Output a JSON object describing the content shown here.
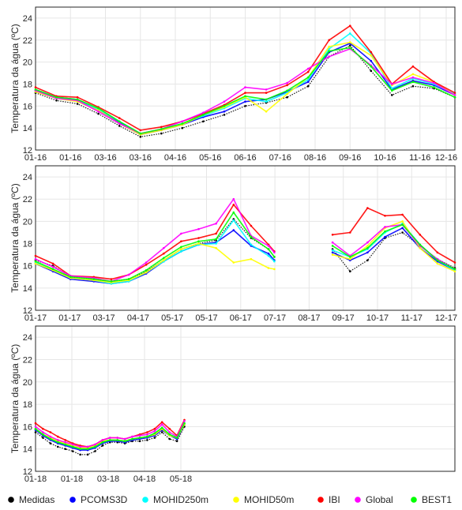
{
  "legend": {
    "items": [
      {
        "name": "Medidas",
        "color": "#000000"
      },
      {
        "name": "PCOMS3D",
        "color": "#0000ff"
      },
      {
        "name": "MOHID250m",
        "color": "#00ffff"
      },
      {
        "name": "MOHID50m",
        "color": "#ffff00"
      },
      {
        "name": "IBI",
        "color": "#ff0000"
      },
      {
        "name": "Global",
        "color": "#ff00ff"
      },
      {
        "name": "BEST1",
        "color": "#00ff00"
      }
    ]
  },
  "chart_data": [
    {
      "type": "line",
      "ylabel": "Temperatura da água (ºC)",
      "ylim": [
        12,
        25
      ],
      "yticks": [
        "12",
        "14",
        "16",
        "18",
        "20",
        "22",
        "24"
      ],
      "xticks": [
        "01-16",
        "01-16",
        "03-16",
        "03-16",
        "04-16",
        "05-16",
        "06-16",
        "07-16",
        "08-16",
        "09-16",
        "10-16",
        "11-16",
        "12-16"
      ],
      "grid": true,
      "series": [
        {
          "name": "Medidas",
          "x": [
            0,
            3,
            6,
            9,
            12,
            15,
            18,
            21,
            24,
            27,
            30,
            33,
            36,
            39,
            42,
            45,
            48,
            51,
            54,
            57,
            60
          ],
          "y": [
            17.2,
            16.5,
            16.2,
            15.3,
            14.2,
            13.2,
            13.5,
            14.0,
            14.6,
            15.2,
            16.0,
            16.3,
            16.8,
            17.8,
            20.5,
            21.5,
            19.2,
            17.0,
            17.8,
            17.6,
            16.8
          ]
        },
        {
          "name": "PCOMS3D",
          "x": [
            0,
            3,
            6,
            9,
            12,
            15,
            18,
            21,
            24,
            27,
            30,
            33,
            36,
            39,
            42,
            45,
            48,
            51,
            54,
            57,
            60
          ],
          "y": [
            17.4,
            16.8,
            16.6,
            15.6,
            14.5,
            13.4,
            13.8,
            14.3,
            15.0,
            15.5,
            16.4,
            16.6,
            17.3,
            18.2,
            20.9,
            21.7,
            20.1,
            17.5,
            18.3,
            17.9,
            17.0
          ]
        },
        {
          "name": "MOHID250m",
          "x": [
            0,
            3,
            6,
            9,
            12,
            15,
            18,
            21,
            24,
            27,
            30,
            33,
            36,
            39,
            42,
            45,
            48,
            51,
            54,
            57,
            60
          ],
          "y": [
            17.5,
            16.8,
            16.5,
            15.7,
            14.6,
            13.5,
            13.9,
            14.4,
            15.1,
            15.8,
            16.7,
            16.4,
            17.2,
            18.4,
            21.2,
            22.6,
            20.8,
            17.6,
            18.5,
            18.0,
            17.1
          ]
        },
        {
          "name": "MOHID50m",
          "x": [
            0,
            3,
            6,
            9,
            12,
            15,
            18,
            21,
            24,
            27,
            30,
            33,
            36,
            39,
            42,
            45,
            48,
            51,
            54,
            57,
            60
          ],
          "y": [
            17.3,
            16.7,
            16.4,
            15.6,
            14.4,
            13.4,
            13.8,
            14.3,
            15.2,
            15.9,
            16.8,
            15.5,
            17.1,
            18.6,
            21.4,
            21.8,
            20.6,
            17.9,
            18.9,
            18.2,
            17.0
          ]
        },
        {
          "name": "IBI",
          "x": [
            0,
            3,
            6,
            9,
            12,
            15,
            18,
            21,
            24,
            27,
            30,
            33,
            36,
            39,
            42,
            45,
            48,
            51,
            54,
            57,
            60
          ],
          "y": [
            17.7,
            16.9,
            16.8,
            15.9,
            14.9,
            13.8,
            14.1,
            14.6,
            15.3,
            16.1,
            17.2,
            17.2,
            17.9,
            19.1,
            22.0,
            23.3,
            20.9,
            18.0,
            19.6,
            18.2,
            17.2
          ]
        },
        {
          "name": "Global",
          "x": [
            0,
            3,
            6,
            9,
            12,
            15,
            18,
            21,
            24,
            27,
            30,
            33,
            36,
            39,
            42,
            45,
            48,
            51,
            54,
            57,
            60
          ],
          "y": [
            17.4,
            16.7,
            16.5,
            15.5,
            14.4,
            13.5,
            13.9,
            14.6,
            15.4,
            16.4,
            17.7,
            17.5,
            18.1,
            19.4,
            20.5,
            21.2,
            19.7,
            18.0,
            18.6,
            18.1,
            17.0
          ]
        },
        {
          "name": "BEST1",
          "x": [
            0,
            3,
            6,
            9,
            12,
            15,
            18,
            21,
            24,
            27,
            30,
            33,
            36,
            39,
            42,
            45,
            48,
            51,
            54,
            57,
            60
          ],
          "y": [
            17.5,
            16.8,
            16.6,
            15.8,
            14.6,
            13.5,
            13.9,
            14.4,
            15.2,
            16.0,
            16.9,
            16.6,
            17.4,
            18.6,
            21.0,
            21.3,
            19.6,
            17.4,
            18.2,
            17.7,
            16.8
          ]
        }
      ]
    },
    {
      "type": "line",
      "ylabel": "Temperatura da água (ºC)",
      "ylim": [
        12,
        25
      ],
      "yticks": [
        "12",
        "14",
        "16",
        "18",
        "20",
        "22",
        "24"
      ],
      "xticks": [
        "01-17",
        "01-17",
        "03-17",
        "04-17",
        "05-17",
        "05-17",
        "06-17",
        "07-17",
        "08-17",
        "09-17",
        "10-17",
        "11-17",
        "12-17"
      ],
      "grid": true,
      "series": [
        {
          "name": "Medidas",
          "x": [
            0,
            3,
            6,
            10,
            13,
            16,
            19,
            22,
            25,
            28,
            31,
            34,
            37,
            40,
            41,
            51,
            54,
            57,
            60,
            63,
            66,
            69,
            72
          ],
          "y": [
            16.5,
            16.0,
            15.0,
            14.8,
            14.6,
            14.8,
            15.5,
            16.5,
            17.5,
            18.0,
            18.3,
            20.2,
            18.5,
            17.5,
            16.8,
            17.5,
            15.5,
            16.5,
            18.5,
            19.0,
            17.8,
            16.6,
            15.8
          ]
        },
        {
          "name": "PCOMS3D",
          "x": [
            0,
            3,
            6,
            10,
            13,
            16,
            19,
            22,
            25,
            28,
            31,
            34,
            37,
            40,
            41,
            51,
            54,
            57,
            60,
            63,
            66,
            69,
            72
          ],
          "y": [
            16.2,
            15.5,
            14.8,
            14.6,
            14.4,
            14.6,
            15.3,
            16.4,
            17.3,
            17.9,
            18.1,
            19.2,
            17.8,
            17.1,
            16.5,
            17.2,
            16.5,
            17.2,
            18.6,
            19.4,
            17.6,
            16.4,
            15.6
          ]
        },
        {
          "name": "MOHID250m",
          "x": [
            0,
            3,
            6,
            10,
            13,
            16,
            19,
            22,
            25,
            28,
            31,
            34,
            37,
            40,
            41,
            51,
            54,
            57,
            60,
            63,
            66,
            69,
            72
          ],
          "y": [
            16.3,
            15.6,
            14.9,
            14.7,
            14.4,
            14.6,
            15.4,
            16.4,
            17.3,
            17.9,
            18.0,
            20.1,
            17.9,
            16.9,
            16.4,
            17.4,
            16.8,
            17.5,
            19.0,
            19.8,
            17.9,
            16.5,
            15.6
          ]
        },
        {
          "name": "MOHID50m",
          "x": [
            0,
            3,
            6,
            10,
            13,
            16,
            19,
            22,
            25,
            28,
            31,
            34,
            37,
            40,
            41,
            51,
            54,
            57,
            60,
            63,
            66,
            69,
            72
          ],
          "y": [
            16.2,
            15.6,
            14.9,
            14.7,
            14.5,
            14.7,
            15.4,
            16.5,
            17.5,
            18.0,
            17.6,
            16.3,
            16.6,
            15.8,
            15.7,
            17.0,
            16.6,
            17.8,
            19.4,
            20.0,
            17.6,
            16.2,
            15.5
          ]
        },
        {
          "name": "IBI",
          "x": [
            0,
            3,
            6,
            10,
            13,
            16,
            19,
            22,
            25,
            28,
            31,
            34,
            37,
            40,
            41,
            51,
            54,
            57,
            60,
            63,
            66,
            69,
            72
          ],
          "y": [
            16.9,
            16.2,
            15.1,
            15.0,
            14.8,
            15.2,
            16.1,
            17.1,
            18.2,
            18.5,
            18.9,
            21.5,
            19.6,
            17.9,
            17.3,
            18.8,
            19.0,
            21.2,
            20.5,
            20.6,
            18.8,
            17.2,
            16.3
          ]
        },
        {
          "name": "Global",
          "x": [
            0,
            3,
            6,
            10,
            13,
            16,
            19,
            22,
            25,
            28,
            31,
            34,
            37,
            40,
            41,
            51,
            54,
            57,
            60,
            63,
            66,
            69,
            72
          ],
          "y": [
            16.6,
            15.9,
            15.1,
            14.9,
            14.6,
            15.2,
            16.3,
            17.6,
            18.9,
            19.3,
            19.8,
            22.0,
            18.7,
            17.8,
            17.2,
            18.1,
            16.9,
            18.1,
            19.5,
            19.7,
            17.8,
            16.6,
            15.7
          ]
        },
        {
          "name": "BEST1",
          "x": [
            0,
            3,
            6,
            10,
            13,
            16,
            19,
            22,
            25,
            28,
            31,
            34,
            37,
            40,
            41,
            51,
            54,
            57,
            60,
            63,
            66,
            69,
            72
          ],
          "y": [
            16.4,
            15.7,
            15.0,
            14.8,
            14.6,
            14.8,
            15.6,
            16.7,
            17.7,
            18.2,
            18.4,
            20.8,
            18.6,
            17.5,
            16.8,
            17.8,
            16.8,
            17.6,
            19.1,
            19.7,
            17.9,
            16.5,
            15.7
          ]
        }
      ]
    },
    {
      "type": "line",
      "ylabel": "Temperatura da água (ºC)",
      "ylim": [
        12,
        25
      ],
      "yticks": [
        "12",
        "14",
        "16",
        "18",
        "20",
        "22",
        "24"
      ],
      "xticks": [
        "01-18",
        "01-18",
        "03-18",
        "04-18",
        "05-18"
      ],
      "grid": true,
      "series": [
        {
          "name": "Medidas",
          "x": [
            0,
            1,
            2,
            3,
            4,
            5,
            6,
            7,
            8,
            9,
            10,
            11,
            12,
            13,
            14,
            15,
            16,
            17,
            18,
            19,
            20
          ],
          "y": [
            15.5,
            15.0,
            14.5,
            14.2,
            14.0,
            13.8,
            13.5,
            13.5,
            13.8,
            14.3,
            14.6,
            14.6,
            14.5,
            14.7,
            14.7,
            14.8,
            15.0,
            15.5,
            14.9,
            14.7,
            16.0
          ]
        },
        {
          "name": "PCOMS3D",
          "x": [
            0,
            1,
            2,
            3,
            4,
            5,
            6,
            7,
            8,
            9,
            10,
            11,
            12,
            13,
            14,
            15,
            16,
            17,
            18,
            19,
            20
          ],
          "y": [
            15.7,
            15.2,
            14.8,
            14.5,
            14.3,
            14.1,
            13.9,
            13.9,
            14.1,
            14.5,
            14.7,
            14.7,
            14.6,
            14.8,
            14.9,
            15.0,
            15.2,
            15.7,
            15.2,
            14.9,
            16.2
          ]
        },
        {
          "name": "MOHID250m",
          "x": [
            0,
            1,
            2,
            3,
            4,
            5,
            6,
            7,
            8,
            9,
            10,
            11,
            12,
            13,
            14,
            15,
            16,
            17,
            18,
            19,
            20
          ],
          "y": [
            15.8,
            15.3,
            14.9,
            14.6,
            14.4,
            14.2,
            14.0,
            14.0,
            14.2,
            14.6,
            14.8,
            14.8,
            14.7,
            14.9,
            15.0,
            15.1,
            15.4,
            15.9,
            15.3,
            15.0,
            16.3
          ]
        },
        {
          "name": "MOHID50m",
          "x": [
            0,
            1,
            2,
            3,
            4,
            5,
            6,
            7,
            8,
            9,
            10,
            11,
            12,
            13,
            14,
            15,
            16,
            17,
            18,
            19,
            20
          ],
          "y": [
            15.8,
            15.3,
            15.0,
            14.7,
            14.5,
            14.3,
            14.1,
            14.1,
            14.3,
            14.7,
            14.8,
            14.8,
            14.7,
            14.9,
            15.0,
            15.1,
            15.3,
            15.8,
            15.2,
            15.0,
            16.2
          ]
        },
        {
          "name": "IBI",
          "x": [
            0,
            1,
            2,
            3,
            4,
            5,
            6,
            7,
            8,
            9,
            10,
            11,
            12,
            13,
            14,
            15,
            16,
            17,
            18,
            19,
            20
          ],
          "y": [
            16.3,
            15.8,
            15.5,
            15.1,
            14.8,
            14.5,
            14.3,
            14.2,
            14.4,
            14.8,
            15.0,
            15.0,
            14.9,
            15.1,
            15.3,
            15.5,
            15.8,
            16.4,
            15.8,
            15.2,
            16.6
          ]
        },
        {
          "name": "Global",
          "x": [
            0,
            1,
            2,
            3,
            4,
            5,
            6,
            7,
            8,
            9,
            10,
            11,
            12,
            13,
            14,
            15,
            16,
            17,
            18,
            19,
            20
          ],
          "y": [
            16.0,
            15.5,
            15.1,
            14.8,
            14.6,
            14.4,
            14.2,
            14.2,
            14.4,
            14.8,
            15.0,
            15.0,
            14.9,
            15.1,
            15.2,
            15.3,
            15.6,
            16.2,
            15.5,
            15.1,
            16.5
          ]
        },
        {
          "name": "BEST1",
          "x": [
            0,
            1,
            2,
            3,
            4,
            5,
            6,
            7,
            8,
            9,
            10,
            11,
            12,
            13,
            14,
            15,
            16,
            17,
            18,
            19,
            20
          ],
          "y": [
            15.8,
            15.3,
            14.9,
            14.6,
            14.4,
            14.2,
            14.0,
            14.0,
            14.2,
            14.6,
            14.8,
            14.8,
            14.7,
            14.9,
            15.0,
            15.1,
            15.4,
            15.9,
            15.3,
            15.0,
            16.3
          ]
        }
      ]
    }
  ]
}
